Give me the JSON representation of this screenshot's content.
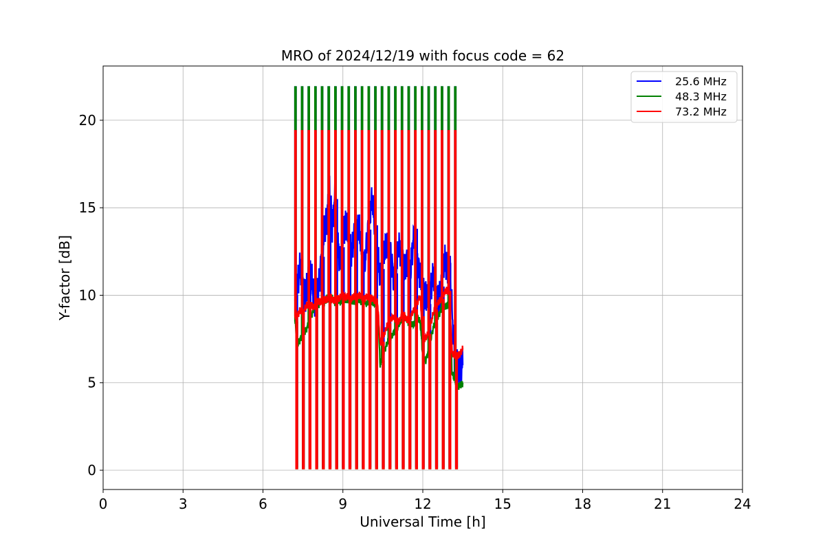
{
  "chart_data": {
    "type": "line",
    "title": "MRO of 2024/12/19 with focus code = 62",
    "xlabel": "Universal Time [h]",
    "ylabel": "Y-factor [dB]",
    "xlim": [
      0,
      24
    ],
    "ylim": [
      -1.1,
      23.1
    ],
    "xticks": [
      0,
      3,
      6,
      9,
      12,
      15,
      18,
      21,
      24
    ],
    "yticks": [
      0,
      5,
      10,
      15,
      20
    ],
    "grid": true,
    "legend_position": "top-right",
    "calibration_pulses_h": [
      7.2,
      7.45,
      7.7,
      7.95,
      8.2,
      8.45,
      8.7,
      8.95,
      9.2,
      9.45,
      9.7,
      9.95,
      10.2,
      10.45,
      10.7,
      10.95,
      11.2,
      11.45,
      11.7,
      11.95,
      12.2,
      12.45,
      12.7,
      12.95,
      13.2
    ],
    "series": [
      {
        "name": "25.6 MHz",
        "color": "#0000ff",
        "pulse_top": 21.9,
        "pulse_bottom": 0.2,
        "x": [
          7.2,
          7.3,
          7.4,
          7.5,
          7.6,
          7.7,
          7.8,
          7.9,
          8.0,
          8.1,
          8.2,
          8.3,
          8.4,
          8.5,
          8.6,
          8.7,
          8.8,
          8.9,
          9.0,
          9.1,
          9.2,
          9.3,
          9.4,
          9.5,
          9.6,
          9.7,
          9.8,
          9.9,
          10.0,
          10.1,
          10.2,
          10.3,
          10.4,
          10.5,
          10.6,
          10.7,
          10.8,
          10.9,
          11.0,
          11.1,
          11.2,
          11.3,
          11.4,
          11.5,
          11.6,
          11.7,
          11.8,
          11.9,
          12.0,
          12.1,
          12.2,
          12.3,
          12.4,
          12.5,
          12.6,
          12.7,
          12.8,
          12.9,
          13.0,
          13.1,
          13.2,
          13.3,
          13.4,
          13.5
        ],
        "y": [
          10.0,
          10.8,
          11.5,
          10.4,
          9.8,
          10.8,
          11.2,
          10.0,
          9.6,
          10.5,
          12.2,
          13.5,
          14.5,
          15.8,
          14.0,
          15.5,
          13.0,
          12.0,
          13.5,
          14.2,
          13.5,
          12.5,
          13.0,
          13.8,
          14.0,
          12.5,
          11.5,
          13.0,
          14.5,
          15.5,
          14.0,
          12.5,
          11.0,
          12.0,
          12.8,
          13.0,
          12.2,
          11.0,
          11.5,
          13.0,
          12.0,
          11.5,
          12.0,
          11.0,
          12.5,
          13.8,
          12.0,
          11.0,
          10.5,
          10.0,
          9.5,
          10.5,
          11.0,
          10.0,
          9.5,
          10.5,
          12.0,
          11.5,
          12.2,
          9.0,
          6.2,
          5.8,
          6.0,
          6.0
        ]
      },
      {
        "name": "48.3 MHz",
        "color": "#008000",
        "pulse_top": 21.9,
        "pulse_bottom": 0.1,
        "x": [
          7.2,
          7.3,
          7.4,
          7.5,
          7.6,
          7.7,
          7.8,
          7.9,
          8.0,
          8.1,
          8.2,
          8.3,
          8.4,
          8.5,
          8.6,
          8.7,
          8.8,
          8.9,
          9.0,
          9.1,
          9.2,
          9.3,
          9.4,
          9.5,
          9.6,
          9.7,
          9.8,
          9.9,
          10.0,
          10.1,
          10.2,
          10.3,
          10.4,
          10.5,
          10.6,
          10.7,
          10.8,
          10.9,
          11.0,
          11.1,
          11.2,
          11.3,
          11.4,
          11.5,
          11.6,
          11.7,
          11.8,
          11.9,
          12.0,
          12.1,
          12.2,
          12.3,
          12.4,
          12.5,
          12.6,
          12.7,
          12.8,
          12.9,
          13.0,
          13.1,
          13.2,
          13.3,
          13.4,
          13.5
        ],
        "y": [
          8.5,
          7.2,
          7.5,
          7.8,
          8.0,
          8.3,
          8.8,
          9.2,
          9.5,
          9.5,
          9.7,
          9.6,
          9.8,
          9.7,
          9.8,
          9.6,
          9.7,
          9.6,
          9.8,
          9.7,
          9.8,
          9.6,
          9.7,
          9.6,
          9.8,
          9.6,
          9.7,
          9.5,
          9.8,
          9.6,
          9.5,
          9.3,
          6.0,
          6.5,
          7.0,
          7.4,
          7.6,
          7.8,
          8.0,
          8.3,
          8.6,
          8.7,
          8.6,
          8.4,
          8.3,
          8.4,
          8.7,
          8.5,
          6.5,
          6.2,
          6.8,
          7.5,
          8.2,
          8.6,
          8.9,
          9.2,
          9.4,
          9.4,
          9.4,
          5.5,
          5.2,
          4.8,
          4.8,
          5.0
        ]
      },
      {
        "name": "73.2 MHz",
        "color": "#ff0000",
        "pulse_top": 19.4,
        "pulse_bottom": 0.1,
        "x": [
          7.2,
          7.3,
          7.4,
          7.5,
          7.6,
          7.7,
          7.8,
          7.9,
          8.0,
          8.1,
          8.2,
          8.3,
          8.4,
          8.5,
          8.6,
          8.7,
          8.8,
          8.9,
          9.0,
          9.1,
          9.2,
          9.3,
          9.4,
          9.5,
          9.6,
          9.7,
          9.8,
          9.9,
          10.0,
          10.1,
          10.2,
          10.3,
          10.4,
          10.5,
          10.6,
          10.7,
          10.8,
          10.9,
          11.0,
          11.1,
          11.2,
          11.3,
          11.4,
          11.5,
          11.6,
          11.7,
          11.8,
          11.9,
          12.0,
          12.1,
          12.2,
          12.3,
          12.4,
          12.5,
          12.6,
          12.7,
          12.8,
          12.9,
          13.0,
          13.1,
          13.2,
          13.3,
          13.4,
          13.5
        ],
        "y": [
          8.8,
          8.9,
          9.1,
          9.0,
          9.3,
          9.5,
          9.4,
          9.3,
          9.6,
          9.6,
          9.7,
          9.7,
          9.8,
          9.9,
          9.8,
          9.7,
          9.8,
          9.9,
          10.0,
          9.9,
          9.9,
          9.8,
          9.9,
          9.9,
          10.0,
          9.9,
          9.8,
          9.9,
          9.9,
          9.8,
          9.7,
          9.6,
          7.2,
          7.5,
          8.0,
          8.4,
          8.6,
          8.8,
          8.6,
          8.5,
          8.8,
          8.9,
          8.6,
          8.5,
          9.0,
          9.2,
          9.6,
          10.0,
          7.6,
          7.5,
          7.8,
          8.4,
          9.0,
          9.4,
          9.6,
          9.8,
          10.1,
          10.3,
          10.2,
          6.7,
          6.6,
          6.5,
          6.7,
          6.9
        ]
      }
    ]
  }
}
